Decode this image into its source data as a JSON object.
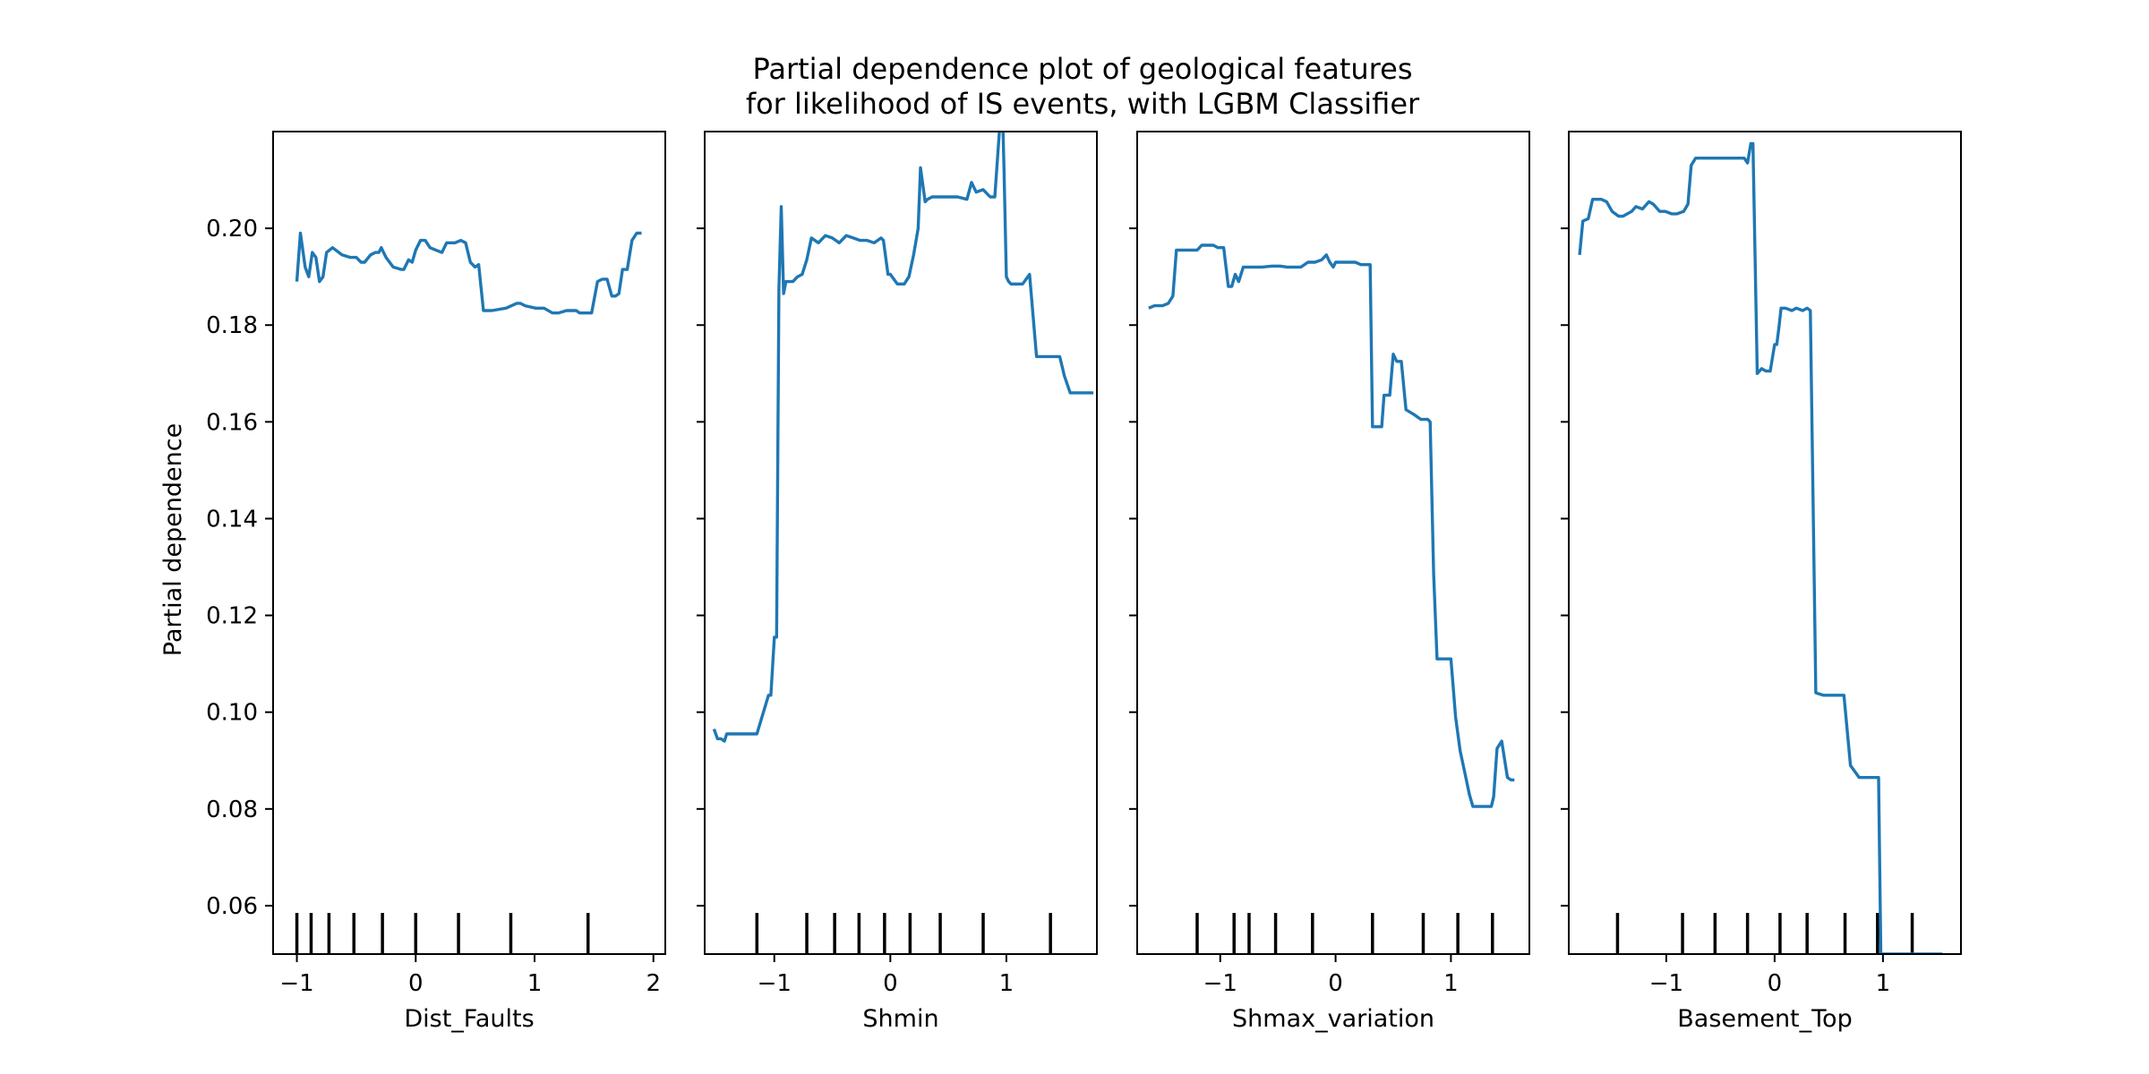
{
  "chart_data": {
    "type": "line",
    "title": [
      "Partial dependence plot of geological features",
      "for likelihood of IS events, with LGBM Classifier"
    ],
    "ylabel": "Partial dependence",
    "ylim": [
      0.05,
      0.22
    ],
    "yticks": [
      0.06,
      0.08,
      0.1,
      0.12,
      0.14,
      0.16,
      0.18,
      0.2
    ],
    "ytick_labels": [
      "0.06",
      "0.08",
      "0.10",
      "0.12",
      "0.14",
      "0.16",
      "0.18",
      "0.20"
    ],
    "shared_y": true,
    "line_color": "#1f77b4",
    "panels": [
      {
        "xlabel": "Dist_Faults",
        "xlim": [
          -1.2,
          2.1
        ],
        "xticks": [
          -1,
          0,
          1,
          2
        ],
        "xtick_labels": [
          "−1",
          "0",
          "1",
          "2"
        ],
        "deciles": [
          -1.0,
          -0.88,
          -0.73,
          -0.52,
          -0.28,
          0.0,
          0.36,
          0.8,
          1.45
        ],
        "x": [
          -1.0,
          -0.97,
          -0.93,
          -0.9,
          -0.87,
          -0.84,
          -0.81,
          -0.78,
          -0.75,
          -0.7,
          -0.62,
          -0.55,
          -0.5,
          -0.46,
          -0.43,
          -0.38,
          -0.34,
          -0.31,
          -0.29,
          -0.25,
          -0.19,
          -0.12,
          -0.1,
          -0.06,
          -0.03,
          0.0,
          0.04,
          0.08,
          0.12,
          0.17,
          0.22,
          0.26,
          0.3,
          0.33,
          0.38,
          0.42,
          0.46,
          0.5,
          0.53,
          0.57,
          0.6,
          0.64,
          0.76,
          0.85,
          0.88,
          0.92,
          1.01,
          1.08,
          1.15,
          1.2,
          1.27,
          1.35,
          1.38,
          1.43,
          1.48,
          1.53,
          1.57,
          1.61,
          1.65,
          1.68,
          1.71,
          1.74,
          1.78,
          1.82,
          1.86,
          1.9
        ],
        "y": [
          0.189,
          0.199,
          0.192,
          0.19,
          0.195,
          0.194,
          0.189,
          0.19,
          0.195,
          0.196,
          0.1945,
          0.194,
          0.194,
          0.193,
          0.193,
          0.1945,
          0.195,
          0.195,
          0.196,
          0.194,
          0.192,
          0.1915,
          0.1915,
          0.1935,
          0.193,
          0.1955,
          0.1975,
          0.1975,
          0.196,
          0.1955,
          0.195,
          0.197,
          0.197,
          0.197,
          0.1975,
          0.197,
          0.193,
          0.192,
          0.1925,
          0.183,
          0.183,
          0.183,
          0.1835,
          0.1845,
          0.1845,
          0.184,
          0.1835,
          0.1835,
          0.1825,
          0.1825,
          0.183,
          0.183,
          0.1825,
          0.1825,
          0.1825,
          0.189,
          0.1895,
          0.1895,
          0.186,
          0.186,
          0.1865,
          0.1915,
          0.1915,
          0.1975,
          0.199,
          0.199
        ]
      },
      {
        "xlabel": "Shmin",
        "xlim": [
          -1.6,
          1.78
        ],
        "xticks": [
          -1,
          0,
          1
        ],
        "xtick_labels": [
          "−1",
          "0",
          "1"
        ],
        "deciles": [
          -1.15,
          -0.72,
          -0.48,
          -0.27,
          -0.05,
          0.17,
          0.43,
          0.8,
          1.38
        ],
        "x": [
          -1.52,
          -1.49,
          -1.46,
          -1.43,
          -1.41,
          -1.37,
          -1.3,
          -1.22,
          -1.15,
          -1.1,
          -1.05,
          -1.03,
          -1.0,
          -0.98,
          -0.96,
          -0.94,
          -0.92,
          -0.9,
          -0.88,
          -0.84,
          -0.8,
          -0.76,
          -0.72,
          -0.68,
          -0.62,
          -0.56,
          -0.5,
          -0.44,
          -0.38,
          -0.32,
          -0.26,
          -0.2,
          -0.14,
          -0.08,
          -0.06,
          -0.02,
          0.0,
          0.06,
          0.12,
          0.16,
          0.2,
          0.24,
          0.26,
          0.3,
          0.32,
          0.36,
          0.42,
          0.5,
          0.58,
          0.66,
          0.7,
          0.74,
          0.8,
          0.86,
          0.9,
          0.94,
          0.97,
          0.98,
          1.0,
          1.02,
          1.04,
          1.08,
          1.14,
          1.2,
          1.26,
          1.32,
          1.4,
          1.46,
          1.5,
          1.55,
          1.62,
          1.7,
          1.75
        ],
        "y": [
          0.0965,
          0.0945,
          0.0945,
          0.094,
          0.0955,
          0.0955,
          0.0955,
          0.0955,
          0.0955,
          0.0995,
          0.1035,
          0.1035,
          0.1155,
          0.1155,
          0.1875,
          0.2045,
          0.1865,
          0.189,
          0.189,
          0.189,
          0.19,
          0.1905,
          0.1935,
          0.198,
          0.197,
          0.1985,
          0.198,
          0.197,
          0.1985,
          0.198,
          0.1975,
          0.1975,
          0.197,
          0.198,
          0.1975,
          0.1905,
          0.1905,
          0.1885,
          0.1885,
          0.19,
          0.1945,
          0.2,
          0.2125,
          0.2055,
          0.206,
          0.2065,
          0.2065,
          0.2065,
          0.2065,
          0.206,
          0.2095,
          0.2075,
          0.208,
          0.2065,
          0.2065,
          0.22,
          0.2215,
          0.212,
          0.19,
          0.189,
          0.1885,
          0.1885,
          0.1885,
          0.1905,
          0.1735,
          0.1735,
          0.1735,
          0.1735,
          0.1695,
          0.166,
          0.166,
          0.166,
          0.166
        ]
      },
      {
        "xlabel": "Shmax_variation",
        "xlim": [
          -1.72,
          1.68
        ],
        "xticks": [
          -1,
          0,
          1
        ],
        "xtick_labels": [
          "−1",
          "0",
          "1"
        ],
        "deciles": [
          -1.2,
          -0.88,
          -0.75,
          -0.52,
          -0.2,
          0.32,
          0.76,
          1.06,
          1.36
        ],
        "x": [
          -1.62,
          -1.57,
          -1.5,
          -1.45,
          -1.41,
          -1.38,
          -1.3,
          -1.2,
          -1.16,
          -1.12,
          -1.06,
          -1.02,
          -0.97,
          -0.93,
          -0.9,
          -0.87,
          -0.84,
          -0.8,
          -0.72,
          -0.64,
          -0.55,
          -0.48,
          -0.42,
          -0.35,
          -0.3,
          -0.24,
          -0.18,
          -0.12,
          -0.08,
          -0.05,
          -0.02,
          0.0,
          0.06,
          0.12,
          0.17,
          0.22,
          0.3,
          0.32,
          0.34,
          0.4,
          0.42,
          0.47,
          0.5,
          0.53,
          0.57,
          0.61,
          0.68,
          0.74,
          0.8,
          0.82,
          0.85,
          0.88,
          0.92,
          0.97,
          1.0,
          1.04,
          1.08,
          1.12,
          1.16,
          1.19,
          1.23,
          1.29,
          1.35,
          1.37,
          1.4,
          1.44,
          1.49,
          1.52,
          1.55
        ],
        "y": [
          0.1835,
          0.184,
          0.184,
          0.1845,
          0.186,
          0.1955,
          0.1955,
          0.1955,
          0.1965,
          0.1965,
          0.1965,
          0.196,
          0.196,
          0.188,
          0.188,
          0.1905,
          0.189,
          0.192,
          0.192,
          0.192,
          0.1922,
          0.1922,
          0.192,
          0.192,
          0.192,
          0.193,
          0.193,
          0.1935,
          0.1945,
          0.193,
          0.192,
          0.193,
          0.193,
          0.193,
          0.193,
          0.1925,
          0.1925,
          0.159,
          0.159,
          0.159,
          0.1655,
          0.1655,
          0.174,
          0.1725,
          0.1725,
          0.1625,
          0.1615,
          0.1605,
          0.1605,
          0.16,
          0.1285,
          0.111,
          0.111,
          0.111,
          0.111,
          0.099,
          0.092,
          0.0875,
          0.083,
          0.0805,
          0.0805,
          0.0805,
          0.0805,
          0.0825,
          0.0925,
          0.094,
          0.0865,
          0.086,
          0.086
        ]
      },
      {
        "xlabel": "Basement_Top",
        "xlim": [
          -1.9,
          1.72
        ],
        "xticks": [
          -1,
          0,
          1
        ],
        "xtick_labels": [
          "−1",
          "0",
          "1"
        ],
        "deciles": [
          -1.45,
          -0.85,
          -0.55,
          -0.25,
          0.05,
          0.3,
          0.65,
          0.95,
          1.27
        ],
        "x": [
          -1.8,
          -1.77,
          -1.72,
          -1.68,
          -1.6,
          -1.55,
          -1.5,
          -1.44,
          -1.4,
          -1.32,
          -1.28,
          -1.22,
          -1.16,
          -1.12,
          -1.06,
          -1.01,
          -0.95,
          -0.9,
          -0.84,
          -0.8,
          -0.77,
          -0.73,
          -0.66,
          -0.6,
          -0.55,
          -0.5,
          -0.46,
          -0.4,
          -0.34,
          -0.28,
          -0.25,
          -0.22,
          -0.2,
          -0.16,
          -0.12,
          -0.08,
          -0.04,
          0.0,
          0.02,
          0.04,
          0.06,
          0.1,
          0.16,
          0.2,
          0.26,
          0.3,
          0.33,
          0.38,
          0.45,
          0.54,
          0.6,
          0.62,
          0.64,
          0.7,
          0.78,
          0.88,
          0.92,
          0.94,
          0.96,
          0.98,
          1.05,
          1.15,
          1.28,
          1.42,
          1.55
        ],
        "y": [
          0.1945,
          0.2015,
          0.202,
          0.206,
          0.206,
          0.2055,
          0.2035,
          0.2025,
          0.2025,
          0.2035,
          0.2045,
          0.204,
          0.2055,
          0.205,
          0.2035,
          0.2035,
          0.203,
          0.203,
          0.2035,
          0.205,
          0.213,
          0.2145,
          0.2145,
          0.2145,
          0.2145,
          0.2145,
          0.2145,
          0.2145,
          0.2145,
          0.2145,
          0.2135,
          0.2175,
          0.2175,
          0.17,
          0.171,
          0.1705,
          0.1705,
          0.176,
          0.176,
          0.1795,
          0.1835,
          0.1835,
          0.183,
          0.1835,
          0.183,
          0.1835,
          0.183,
          0.104,
          0.1035,
          0.1035,
          0.1035,
          0.1035,
          0.1035,
          0.089,
          0.0865,
          0.0865,
          0.0865,
          0.0865,
          0.0865,
          0.05,
          0.05,
          0.05,
          0.05,
          0.05,
          0.05
        ]
      }
    ]
  }
}
